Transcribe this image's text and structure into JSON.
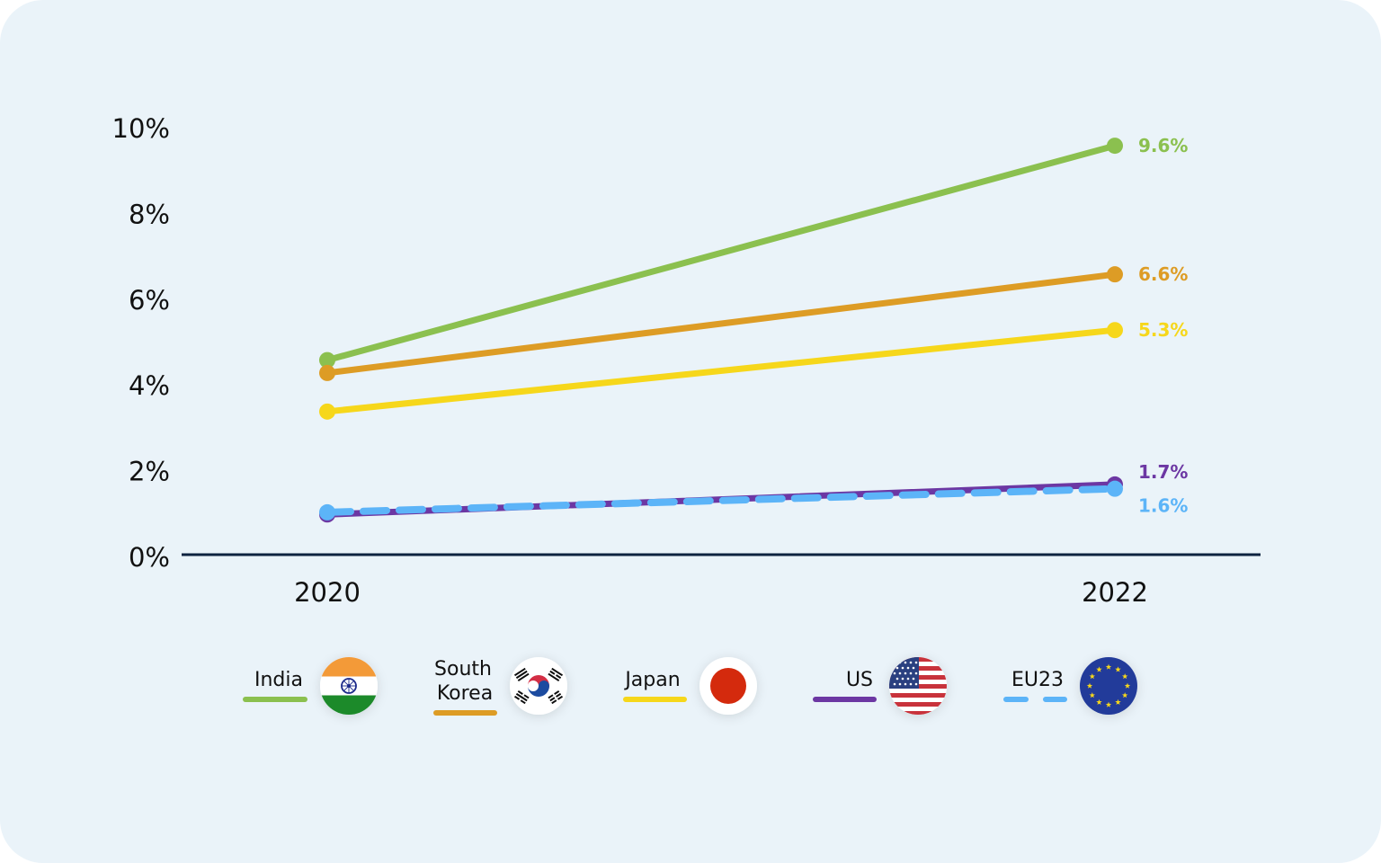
{
  "chart_data": {
    "type": "line",
    "x": [
      "2020",
      "2022"
    ],
    "y_ticks": [
      "0%",
      "2%",
      "4%",
      "6%",
      "8%",
      "10%"
    ],
    "ylim": [
      0,
      10
    ],
    "grid": false,
    "legend_position": "bottom",
    "series": [
      {
        "name": "India",
        "values": [
          4.6,
          9.6
        ],
        "end_label": "9.6%",
        "color": "#8bc04f",
        "dashed": false,
        "flag": "india-flag"
      },
      {
        "name": "South Korea",
        "name_lines": [
          "South",
          "Korea"
        ],
        "values": [
          4.3,
          6.6
        ],
        "end_label": "6.6%",
        "color": "#dd9c25",
        "dashed": false,
        "flag": "south-korea-flag"
      },
      {
        "name": "Japan",
        "values": [
          3.4,
          5.3
        ],
        "end_label": "5.3%",
        "color": "#f6d71b",
        "dashed": false,
        "flag": "japan-flag"
      },
      {
        "name": "US",
        "values": [
          1.0,
          1.7
        ],
        "end_label": "1.7%",
        "color": "#6c37a3",
        "dashed": false,
        "flag": "us-flag"
      },
      {
        "name": "EU23",
        "values": [
          1.05,
          1.6
        ],
        "end_label": "1.6%",
        "color": "#5cb4f8",
        "dashed": true,
        "flag": "eu-flag"
      }
    ]
  }
}
